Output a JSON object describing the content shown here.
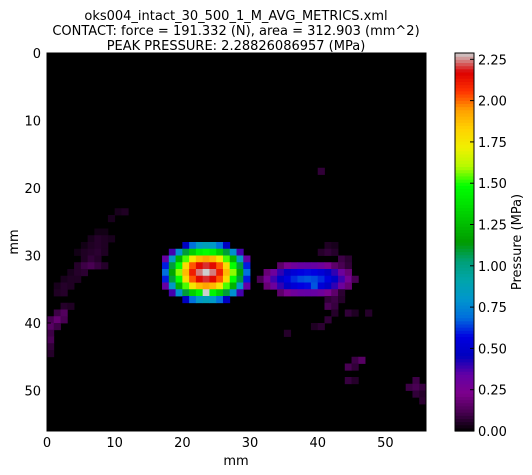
{
  "chart_data": {
    "type": "heatmap",
    "title_lines": [
      "oks004_intact_30_500_1_M_AVG_METRICS.xml",
      "CONTACT: force = 191.332 (N), area = 312.903 (mm^2)",
      "PEAK PRESSURE: 2.28826086957 (MPa)"
    ],
    "xlabel": "mm",
    "ylabel": "mm",
    "colorbar_label": "Pressure (MPa)",
    "colormap": "nipy_spectral",
    "xlim": [
      0,
      56
    ],
    "ylim": [
      56,
      0
    ],
    "x_ticks": [
      "0",
      "10",
      "20",
      "30",
      "40",
      "50"
    ],
    "y_ticks": [
      "0",
      "10",
      "20",
      "30",
      "40",
      "50"
    ],
    "colorbar_range": [
      0,
      2.28826086957
    ],
    "colorbar_ticks": [
      "0.00",
      "0.25",
      "0.50",
      "0.75",
      "1.00",
      "1.25",
      "1.50",
      "1.75",
      "2.00",
      "2.25"
    ],
    "grid_size": [
      56,
      56
    ],
    "cells": [
      [
        10,
        23,
        0.04
      ],
      [
        11,
        23,
        0.05
      ],
      [
        9,
        24,
        0.04
      ],
      [
        7,
        26,
        0.03
      ],
      [
        8,
        26,
        0.03
      ],
      [
        6,
        27,
        0.04
      ],
      [
        7,
        27,
        0.06
      ],
      [
        8,
        27,
        0.05
      ],
      [
        9,
        27,
        0.04
      ],
      [
        5,
        28,
        0.03
      ],
      [
        6,
        28,
        0.05
      ],
      [
        7,
        28,
        0.06
      ],
      [
        8,
        28,
        0.05
      ],
      [
        4,
        29,
        0.03
      ],
      [
        5,
        29,
        0.05
      ],
      [
        6,
        29,
        0.06
      ],
      [
        7,
        29,
        0.07
      ],
      [
        8,
        29,
        0.05
      ],
      [
        5,
        30,
        0.05
      ],
      [
        6,
        30,
        0.08
      ],
      [
        7,
        30,
        0.06
      ],
      [
        4,
        31,
        0.06
      ],
      [
        5,
        31,
        0.1
      ],
      [
        6,
        31,
        0.12
      ],
      [
        7,
        31,
        0.09
      ],
      [
        8,
        31,
        0.06
      ],
      [
        3,
        32,
        0.04
      ],
      [
        4,
        32,
        0.06
      ],
      [
        5,
        32,
        0.07
      ],
      [
        2,
        33,
        0.04
      ],
      [
        3,
        33,
        0.05
      ],
      [
        4,
        33,
        0.05
      ],
      [
        1,
        34,
        0.04
      ],
      [
        2,
        34,
        0.06
      ],
      [
        3,
        34,
        0.05
      ],
      [
        1,
        35,
        0.05
      ],
      [
        2,
        35,
        0.06
      ],
      [
        2,
        37,
        0.06
      ],
      [
        3,
        37,
        0.05
      ],
      [
        1,
        38,
        0.1
      ],
      [
        2,
        38,
        0.14
      ],
      [
        0,
        39,
        0.12
      ],
      [
        1,
        39,
        0.18
      ],
      [
        2,
        39,
        0.12
      ],
      [
        0,
        40,
        0.15
      ],
      [
        1,
        40,
        0.1
      ],
      [
        0,
        41,
        0.1
      ],
      [
        0,
        42,
        0.12
      ],
      [
        0,
        43,
        0.08
      ],
      [
        0,
        44,
        0.06
      ],
      [
        40,
        17,
        0.08
      ],
      [
        41,
        28,
        0.05
      ],
      [
        42,
        28,
        0.04
      ],
      [
        40,
        29,
        0.06
      ],
      [
        41,
        29,
        0.08
      ],
      [
        42,
        29,
        0.06
      ],
      [
        43,
        30,
        0.1
      ],
      [
        44,
        30,
        0.07
      ],
      [
        43,
        31,
        0.12
      ],
      [
        44,
        31,
        0.08
      ],
      [
        43,
        32,
        0.14
      ],
      [
        44,
        32,
        0.1
      ],
      [
        43,
        33,
        0.1
      ],
      [
        44,
        33,
        0.14
      ],
      [
        42,
        35,
        0.09
      ],
      [
        43,
        35,
        0.07
      ],
      [
        41,
        36,
        0.08
      ],
      [
        42,
        36,
        0.1
      ],
      [
        43,
        36,
        0.06
      ],
      [
        41,
        37,
        0.12
      ],
      [
        42,
        37,
        0.09
      ],
      [
        42,
        38,
        0.06
      ],
      [
        44,
        38,
        0.08
      ],
      [
        45,
        38,
        0.05
      ],
      [
        47,
        38,
        0.06
      ],
      [
        41,
        39,
        0.08
      ],
      [
        39,
        40,
        0.05
      ],
      [
        40,
        40,
        0.07
      ],
      [
        35,
        41,
        0.06
      ],
      [
        45,
        45,
        0.1
      ],
      [
        46,
        45,
        0.15
      ],
      [
        44,
        46,
        0.12
      ],
      [
        45,
        46,
        0.08
      ],
      [
        44,
        48,
        0.09
      ],
      [
        45,
        48,
        0.06
      ],
      [
        54,
        48,
        0.1
      ],
      [
        53,
        49,
        0.1
      ],
      [
        54,
        49,
        0.12
      ],
      [
        55,
        49,
        0.09
      ],
      [
        54,
        50,
        0.08
      ],
      [
        55,
        50,
        0.06
      ],
      [
        55,
        51,
        0.07
      ]
    ],
    "blobs": [
      {
        "cx": 23.5,
        "cy": 32.5,
        "rx": 6.5,
        "ry": 4.6,
        "peak": 2.28826086957,
        "peak_at": [
          23,
          35
        ]
      },
      {
        "cx": 38.5,
        "cy": 33.5,
        "rx": 7.0,
        "ry": 2.6,
        "peak": 0.66,
        "peak_at": [
          39,
          34
        ]
      }
    ]
  }
}
